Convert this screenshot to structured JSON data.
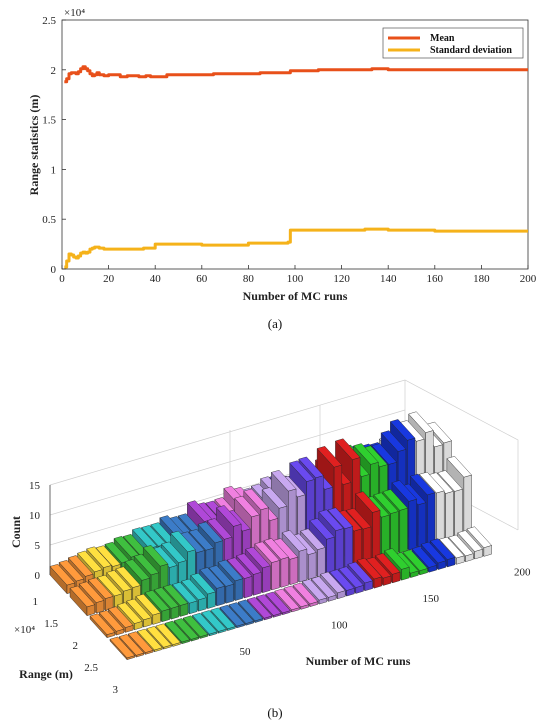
{
  "chart_data": [
    {
      "type": "line",
      "caption": "(a)",
      "xlabel": "Number of MC runs",
      "ylabel": "Range statistics (m)",
      "exponent_label": "×10⁴",
      "xlim": [
        0,
        200
      ],
      "ylim": [
        0,
        25000
      ],
      "xticks": [
        "0",
        "20",
        "40",
        "60",
        "80",
        "100",
        "120",
        "140",
        "160",
        "180",
        "200"
      ],
      "yticks": [
        "0",
        "0.5",
        "1",
        "1.5",
        "2",
        "2.5"
      ],
      "grid": false,
      "legend_position": "top-right",
      "series": [
        {
          "name": "Mean",
          "color": "#e8501a",
          "x": [
            1,
            2,
            3,
            4,
            5,
            6,
            7,
            8,
            9,
            10,
            11,
            12,
            13,
            14,
            15,
            16,
            18,
            20,
            22,
            25,
            28,
            30,
            33,
            36,
            38,
            40,
            45,
            50,
            55,
            60,
            65,
            70,
            75,
            80,
            85,
            90,
            95,
            97,
            98,
            100,
            105,
            110,
            115,
            120,
            125,
            130,
            133,
            140,
            150,
            160,
            170,
            180,
            190,
            200
          ],
          "y": [
            18800,
            19100,
            19600,
            19700,
            19700,
            19600,
            19800,
            20100,
            20300,
            20100,
            19900,
            19600,
            19400,
            19500,
            19700,
            19500,
            19400,
            19500,
            19500,
            19300,
            19400,
            19400,
            19300,
            19400,
            19300,
            19300,
            19500,
            19500,
            19500,
            19500,
            19600,
            19600,
            19600,
            19600,
            19700,
            19700,
            19700,
            19700,
            19900,
            19900,
            19900,
            20000,
            20000,
            20000,
            20000,
            20000,
            20100,
            20000,
            20000,
            20000,
            20000,
            20000,
            20000,
            20000
          ]
        },
        {
          "name": "Standard deviation",
          "color": "#f5b21a",
          "x": [
            1,
            2,
            3,
            4,
            5,
            6,
            7,
            8,
            9,
            10,
            11,
            12,
            13,
            14,
            15,
            16,
            18,
            20,
            22,
            25,
            28,
            30,
            35,
            38,
            40,
            45,
            50,
            55,
            60,
            65,
            70,
            75,
            80,
            85,
            90,
            95,
            97,
            98,
            100,
            105,
            110,
            115,
            120,
            125,
            130,
            135,
            140,
            150,
            160,
            170,
            180,
            190,
            200
          ],
          "y": [
            200,
            800,
            1500,
            1400,
            1200,
            1100,
            1300,
            1600,
            1700,
            1600,
            1700,
            2000,
            2100,
            2200,
            2200,
            2100,
            2000,
            2000,
            2000,
            2000,
            2000,
            2000,
            2100,
            2100,
            2500,
            2500,
            2500,
            2500,
            2400,
            2400,
            2400,
            2400,
            2600,
            2600,
            2600,
            2600,
            2700,
            3900,
            3900,
            3900,
            3900,
            3900,
            3900,
            3900,
            4000,
            4000,
            3900,
            3900,
            3800,
            3800,
            3800,
            3800,
            3800
          ]
        }
      ]
    },
    {
      "type": "bar3d",
      "caption": "(b)",
      "xlabel": "Range (m)",
      "ylabel": "Number of MC runs",
      "zlabel": "Count",
      "exponent_label": "×10⁴",
      "xticks": [
        "1",
        "1.5",
        "2",
        "2.5",
        "3"
      ],
      "yticks": [
        "50",
        "100",
        "150",
        "200"
      ],
      "zticks": [
        "0",
        "5",
        "10",
        "15"
      ],
      "zlim": [
        0,
        15
      ],
      "colors": [
        "#ff9a3c",
        "#ffe040",
        "#3fbf3f",
        "#33c8c8",
        "#3c7cc8",
        "#b048d8",
        "#f080e0",
        "#c8a8f0",
        "#6a4af0",
        "#e02020",
        "#2fcf2f",
        "#1838e0",
        "#ffffff"
      ]
    }
  ]
}
